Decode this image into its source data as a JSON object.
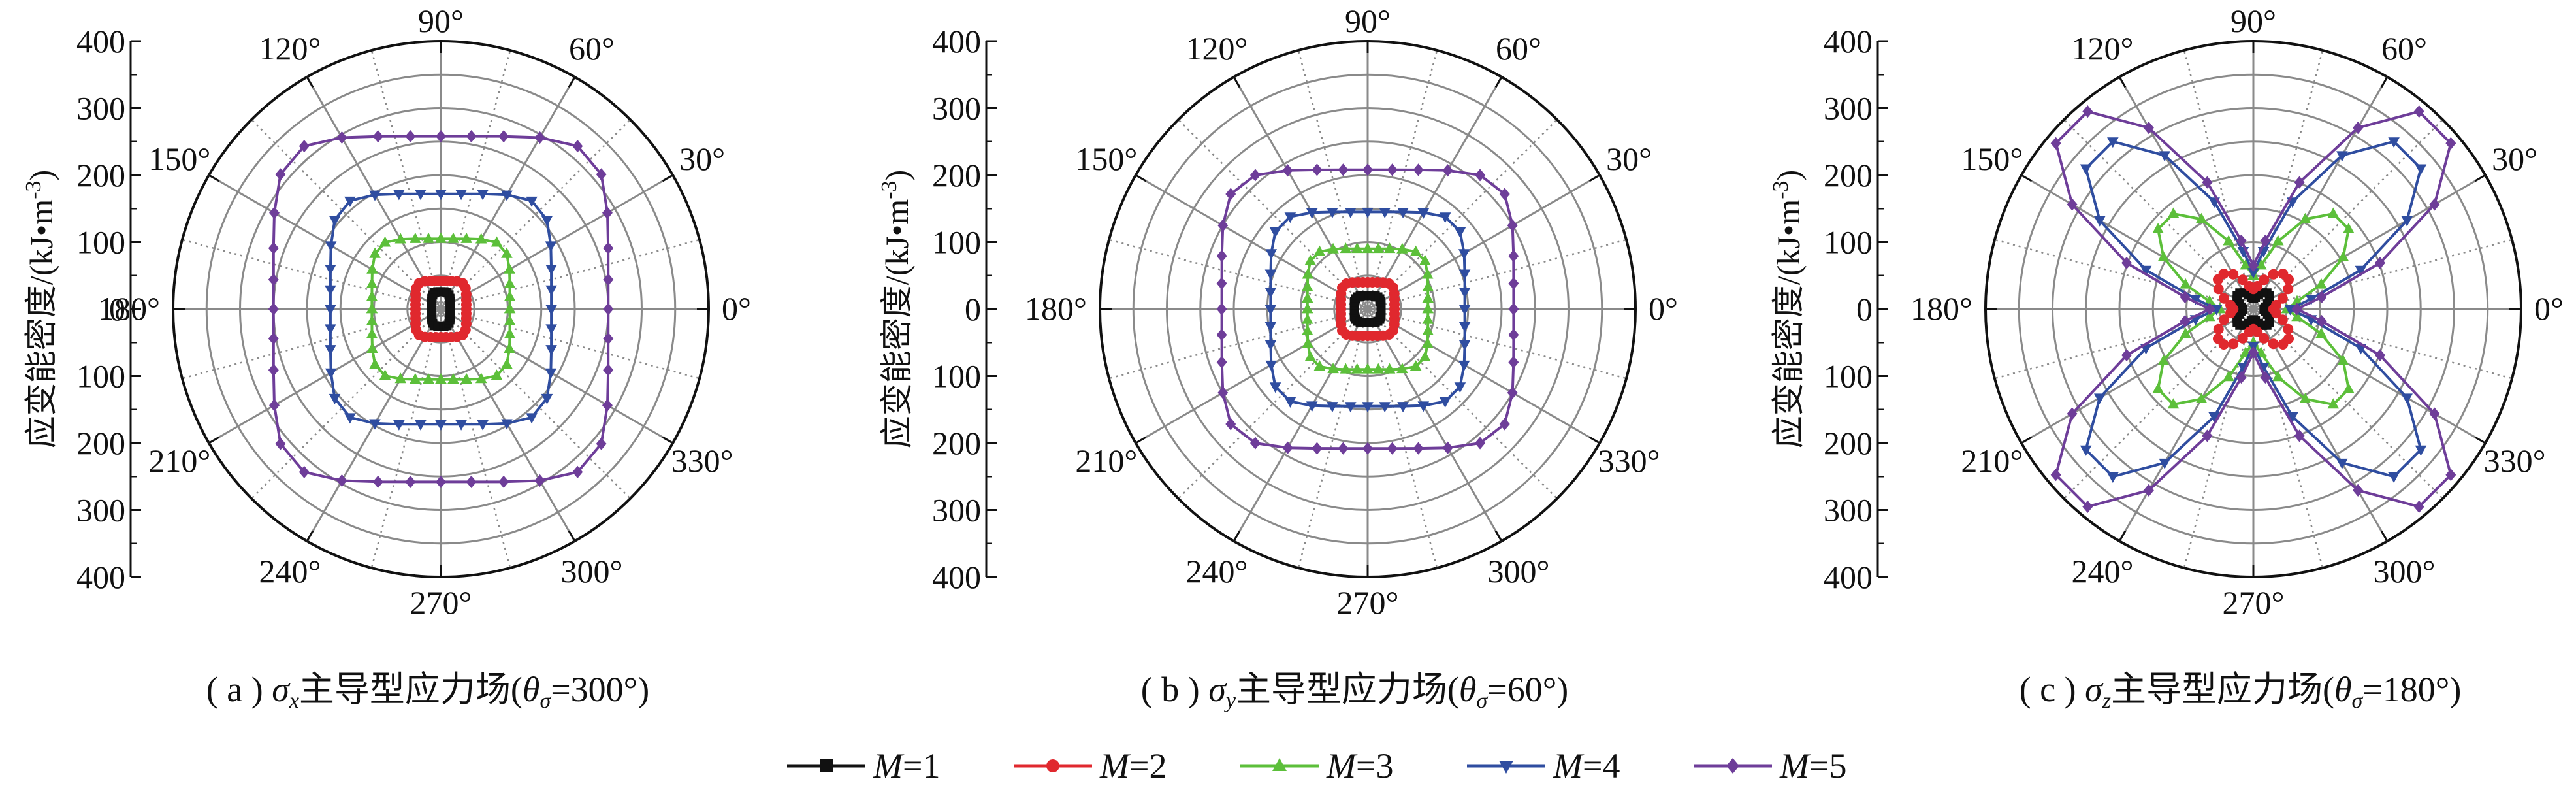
{
  "chart_data": [
    {
      "type": "polar-line",
      "panel_label": "( a )",
      "sigma_sym": "σ",
      "sigma_sub": "x",
      "caption_mid": "主导型应力场(",
      "theta_sym": "θ",
      "theta_sub": "σ",
      "caption_end": "=300°)",
      "ylabel": "应变能密度/(kJ•m",
      "ylabel_exp": "-3",
      "ylabel_close": ")",
      "rlim": [
        0,
        400
      ],
      "r_ticks": [
        "400",
        "300",
        "200",
        "100",
        "0",
        "100",
        "200",
        "300",
        "400"
      ],
      "angle_labels": [
        "0°",
        "30°",
        "60°",
        "90°",
        "120°",
        "150°",
        "180°",
        "210°",
        "240°",
        "270°",
        "300°",
        "330°"
      ],
      "series": [
        {
          "name": "M=1",
          "shape": "rect",
          "a": 14,
          "b": 26,
          "n": 4
        },
        {
          "name": "M=2",
          "shape": "rect",
          "a": 38,
          "b": 42,
          "n": 6
        },
        {
          "name": "M=3",
          "shape": "rect",
          "a": 103,
          "b": 105,
          "n": 6
        },
        {
          "name": "M=4",
          "shape": "rect",
          "a": 165,
          "b": 172,
          "n": 6
        },
        {
          "name": "M=5",
          "shape": "rect",
          "a": 250,
          "b": 258,
          "n": 6
        }
      ]
    },
    {
      "type": "polar-line",
      "panel_label": "( b )",
      "sigma_sym": "σ",
      "sigma_sub": "y",
      "caption_mid": "主导型应力场(",
      "theta_sym": "θ",
      "theta_sub": "σ",
      "caption_end": "=60°)",
      "ylabel": "应变能密度/(kJ•m",
      "ylabel_exp": "-3",
      "ylabel_close": ")",
      "rlim": [
        0,
        400
      ],
      "r_ticks": [
        "400",
        "300",
        "200",
        "100",
        "0",
        "100",
        "200",
        "300",
        "400"
      ],
      "angle_labels": [
        "0°",
        "30°",
        "60°",
        "90°",
        "120°",
        "150°",
        "180°",
        "210°",
        "240°",
        "270°",
        "300°",
        "330°"
      ],
      "series": [
        {
          "name": "M=1",
          "shape": "rect",
          "a": 20,
          "b": 20,
          "n": 4
        },
        {
          "name": "M=2",
          "shape": "rect",
          "a": 40,
          "b": 40,
          "n": 6
        },
        {
          "name": "M=3",
          "shape": "rect",
          "a": 90,
          "b": 90,
          "n": 6
        },
        {
          "name": "M=4",
          "shape": "rect",
          "a": 145,
          "b": 145,
          "n": 6
        },
        {
          "name": "M=5",
          "shape": "rect",
          "a": 218,
          "b": 208,
          "n": 6
        }
      ]
    },
    {
      "type": "polar-line",
      "panel_label": "( c )",
      "sigma_sym": "σ",
      "sigma_sub": "z",
      "caption_mid": "主导型应力场(",
      "theta_sym": "θ",
      "theta_sub": "σ",
      "caption_end": "=180°)",
      "ylabel": "应变能密度/(kJ•m",
      "ylabel_exp": "-3",
      "ylabel_close": ")",
      "rlim": [
        0,
        400
      ],
      "r_ticks": [
        "400",
        "300",
        "200",
        "100",
        "0",
        "100",
        "200",
        "300",
        "400"
      ],
      "angle_labels": [
        "0°",
        "30°",
        "60°",
        "90°",
        "120°",
        "150°",
        "180°",
        "210°",
        "240°",
        "270°",
        "300°",
        "330°"
      ],
      "series": [
        {
          "name": "M=1",
          "shape": "lobed",
          "base": 24,
          "amp": 8,
          "k": 4,
          "phase": 45
        },
        {
          "name": "M=2",
          "shape": "lobed",
          "base": 50,
          "amp": 20,
          "k": 4,
          "phase": 45
        },
        {
          "name": "M=3",
          "shape": "lobed",
          "base": 120,
          "amp": 70,
          "k": 4,
          "phase": 45
        },
        {
          "name": "M=4",
          "shape": "lobed",
          "base": 195,
          "amp": 140,
          "k": 4,
          "phase": 45
        },
        {
          "name": "M=5",
          "shape": "lobed",
          "base": 230,
          "amp": 165,
          "k": 4,
          "phase": 45
        }
      ]
    }
  ],
  "legend": [
    {
      "italic": "M",
      "text": "=1",
      "color": "#111111",
      "marker": "square"
    },
    {
      "italic": "M",
      "text": "=2",
      "color": "#e0282e",
      "marker": "circle"
    },
    {
      "italic": "M",
      "text": "=3",
      "color": "#5cbf3a",
      "marker": "triangle-up"
    },
    {
      "italic": "M",
      "text": "=4",
      "color": "#2f4da0",
      "marker": "triangle-down"
    },
    {
      "italic": "M",
      "text": "=5",
      "color": "#6e3d99",
      "marker": "diamond"
    }
  ]
}
